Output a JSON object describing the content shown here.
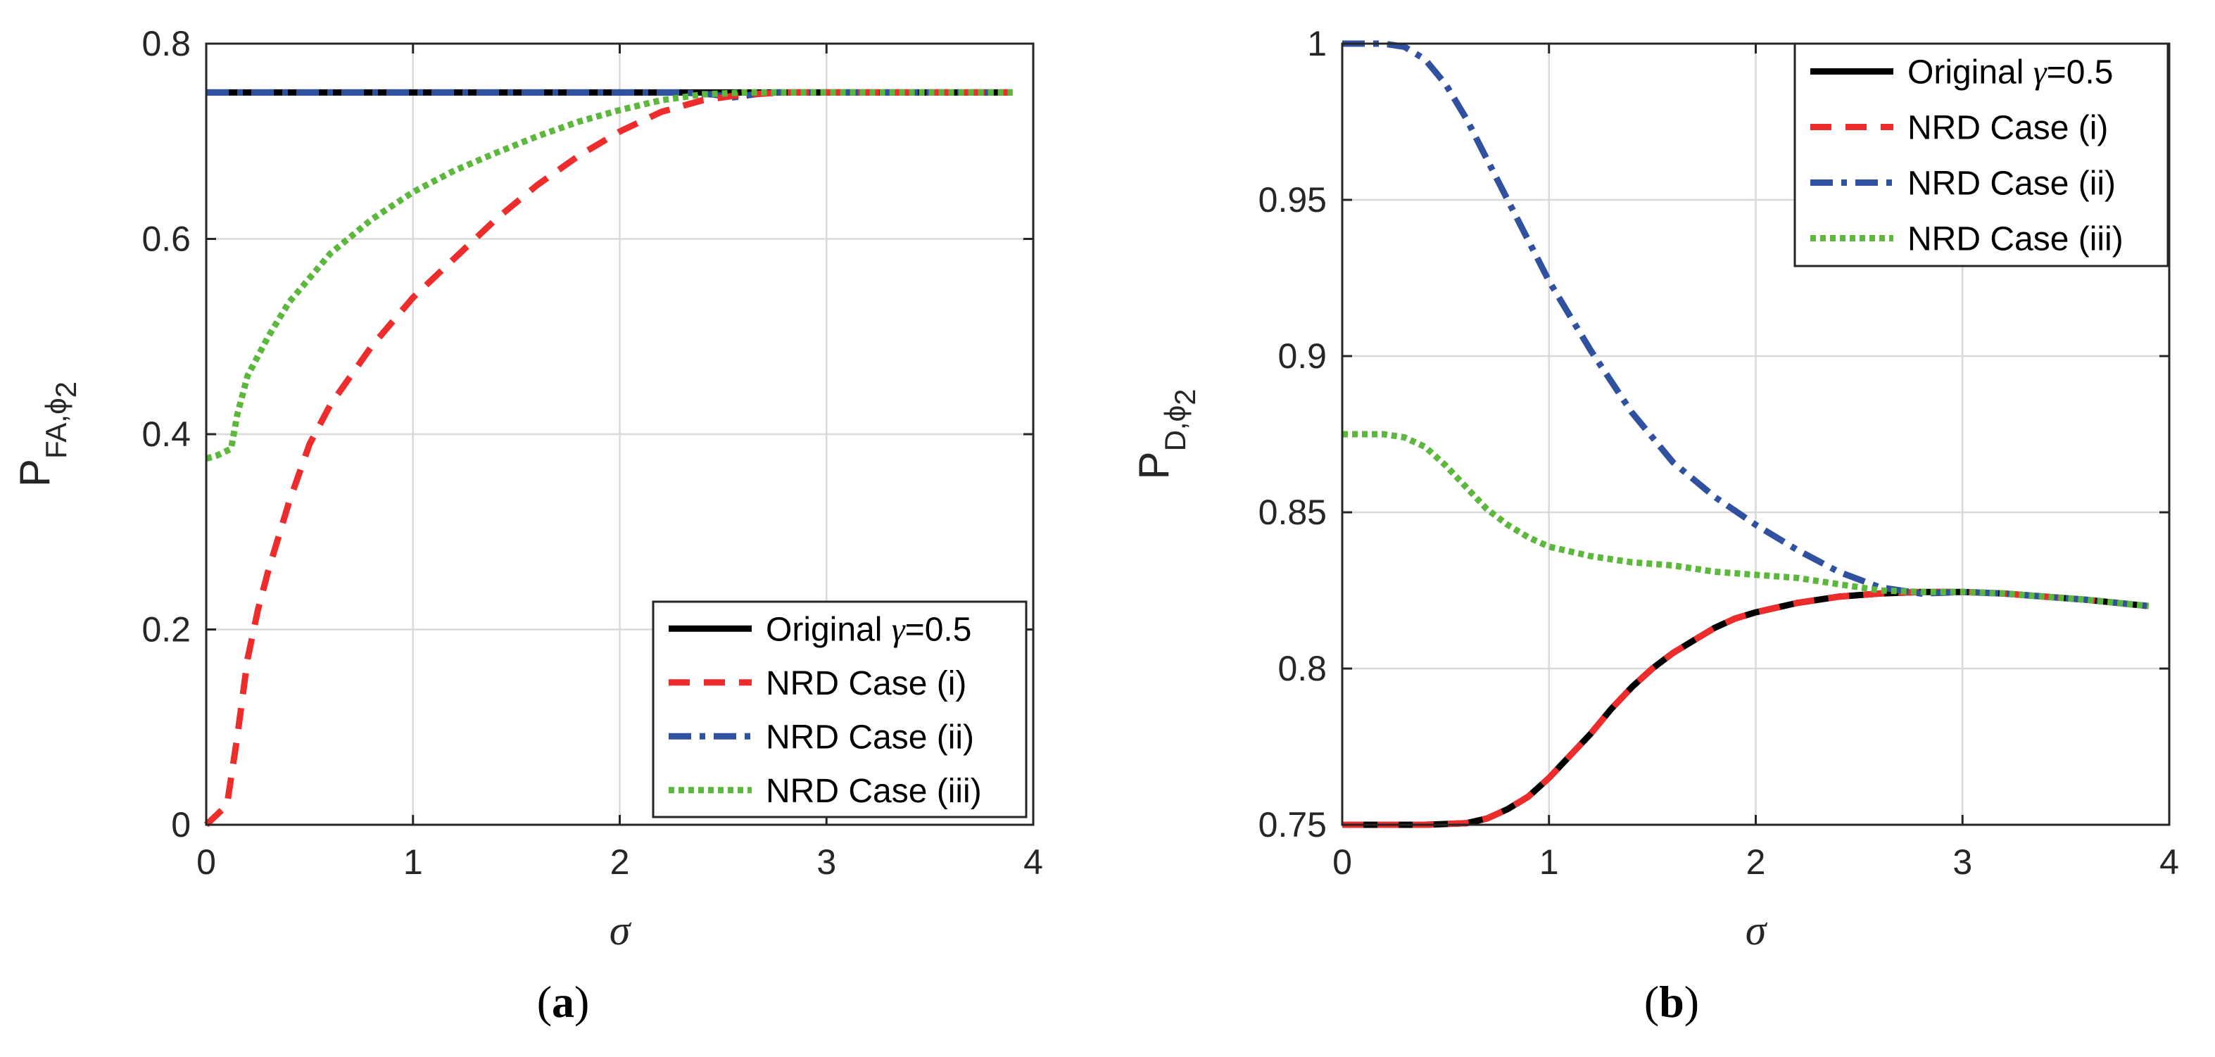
{
  "chart_data": [
    {
      "type": "line",
      "panel_label": "a",
      "xlabel": "σ",
      "ylabel": "P",
      "ylabel_subscript": "FA,ϕ",
      "ylabel_subsubscript": "2",
      "xlim": [
        0,
        4
      ],
      "ylim": [
        0,
        0.8
      ],
      "xticks": [
        0,
        1,
        2,
        3,
        4
      ],
      "yticks": [
        0,
        0.2,
        0.4,
        0.6,
        0.8
      ],
      "xtick_labels": [
        "0",
        "1",
        "2",
        "3",
        "4"
      ],
      "ytick_labels": [
        "0",
        "0.2",
        "0.4",
        "0.6",
        "0.8"
      ],
      "grid": true,
      "legend_position": "bottom-right",
      "series": [
        {
          "name": "Original γ=0.5",
          "color": "#000000",
          "style": "solid",
          "x": [
            0,
            3.9
          ],
          "y": [
            0.75,
            0.75
          ]
        },
        {
          "name": "NRD Case (i)",
          "color": "#ee2c2c",
          "style": "dashed",
          "x": [
            0,
            0.1,
            0.15,
            0.2,
            0.25,
            0.3,
            0.4,
            0.5,
            0.6,
            0.8,
            1.0,
            1.2,
            1.4,
            1.6,
            1.8,
            2.0,
            2.2,
            2.4,
            2.6,
            2.8,
            3.0,
            3.5,
            3.9
          ],
          "y": [
            0.0,
            0.02,
            0.09,
            0.17,
            0.22,
            0.26,
            0.33,
            0.39,
            0.43,
            0.49,
            0.54,
            0.58,
            0.62,
            0.655,
            0.685,
            0.71,
            0.73,
            0.742,
            0.748,
            0.75,
            0.75,
            0.75,
            0.75
          ]
        },
        {
          "name": "NRD Case (ii)",
          "color": "#3050a0",
          "style": "dashdot",
          "x": [
            0,
            2.3,
            2.45,
            2.55,
            2.65,
            2.75,
            3.0,
            3.9
          ],
          "y": [
            0.75,
            0.75,
            0.748,
            0.745,
            0.748,
            0.75,
            0.75,
            0.75
          ]
        },
        {
          "name": "NRD Case (iii)",
          "color": "#5cb83c",
          "style": "dotted",
          "x": [
            0,
            0.05,
            0.12,
            0.15,
            0.2,
            0.3,
            0.4,
            0.5,
            0.6,
            0.8,
            1.0,
            1.2,
            1.4,
            1.6,
            1.8,
            2.0,
            2.2,
            2.4,
            2.6,
            2.8,
            3.0,
            3.5,
            3.9
          ],
          "y": [
            0.375,
            0.378,
            0.385,
            0.42,
            0.46,
            0.5,
            0.535,
            0.56,
            0.585,
            0.62,
            0.648,
            0.67,
            0.688,
            0.705,
            0.72,
            0.732,
            0.742,
            0.748,
            0.75,
            0.75,
            0.75,
            0.75,
            0.75
          ]
        }
      ]
    },
    {
      "type": "line",
      "panel_label": "b",
      "xlabel": "σ",
      "ylabel": "P",
      "ylabel_subscript": "D,ϕ",
      "ylabel_subsubscript": "2",
      "xlim": [
        0,
        4
      ],
      "ylim": [
        0.75,
        1.0
      ],
      "xticks": [
        0,
        1,
        2,
        3,
        4
      ],
      "yticks": [
        0.75,
        0.8,
        0.85,
        0.9,
        0.95,
        1.0
      ],
      "xtick_labels": [
        "0",
        "1",
        "2",
        "3",
        "4"
      ],
      "ytick_labels": [
        "0.75",
        "0.8",
        "0.85",
        "0.9",
        "0.95",
        "1"
      ],
      "grid": true,
      "legend_position": "top-right",
      "series": [
        {
          "name": "Original γ=0.5",
          "color": "#000000",
          "style": "solid",
          "x": [
            0,
            0.2,
            0.4,
            0.6,
            0.7,
            0.8,
            0.9,
            1.0,
            1.1,
            1.2,
            1.3,
            1.4,
            1.5,
            1.6,
            1.7,
            1.8,
            1.9,
            2.0,
            2.2,
            2.4,
            2.6,
            2.8,
            3.0,
            3.2,
            3.4,
            3.6,
            3.9
          ],
          "y": [
            0.75,
            0.75,
            0.75,
            0.7505,
            0.752,
            0.755,
            0.759,
            0.765,
            0.772,
            0.779,
            0.787,
            0.794,
            0.8,
            0.805,
            0.809,
            0.813,
            0.816,
            0.818,
            0.821,
            0.823,
            0.824,
            0.8245,
            0.8245,
            0.824,
            0.823,
            0.822,
            0.82
          ]
        },
        {
          "name": "NRD Case (i)",
          "color": "#ee2c2c",
          "style": "dashed",
          "x": [
            0,
            0.2,
            0.4,
            0.6,
            0.7,
            0.8,
            0.9,
            1.0,
            1.1,
            1.2,
            1.3,
            1.4,
            1.5,
            1.6,
            1.7,
            1.8,
            1.9,
            2.0,
            2.2,
            2.4,
            2.6,
            2.8,
            3.0,
            3.2,
            3.4,
            3.6,
            3.9
          ],
          "y": [
            0.75,
            0.75,
            0.75,
            0.7505,
            0.752,
            0.755,
            0.759,
            0.765,
            0.772,
            0.779,
            0.787,
            0.794,
            0.8,
            0.805,
            0.809,
            0.813,
            0.816,
            0.818,
            0.821,
            0.823,
            0.824,
            0.8245,
            0.8245,
            0.824,
            0.823,
            0.822,
            0.82
          ]
        },
        {
          "name": "NRD Case (ii)",
          "color": "#3050a0",
          "style": "dashdot",
          "x": [
            0,
            0.2,
            0.3,
            0.4,
            0.5,
            0.6,
            0.7,
            0.8,
            0.9,
            1.0,
            1.2,
            1.4,
            1.6,
            1.8,
            2.0,
            2.2,
            2.4,
            2.6,
            2.8,
            3.0,
            3.2,
            3.4,
            3.6,
            3.9
          ],
          "y": [
            1.0,
            1.0,
            0.999,
            0.995,
            0.987,
            0.976,
            0.963,
            0.95,
            0.937,
            0.924,
            0.902,
            0.882,
            0.866,
            0.855,
            0.846,
            0.838,
            0.831,
            0.826,
            0.824,
            0.8245,
            0.824,
            0.823,
            0.822,
            0.82
          ]
        },
        {
          "name": "NRD Case (iii)",
          "color": "#5cb83c",
          "style": "dotted",
          "x": [
            0,
            0.2,
            0.3,
            0.4,
            0.5,
            0.6,
            0.7,
            0.8,
            0.9,
            1.0,
            1.2,
            1.4,
            1.6,
            1.8,
            2.0,
            2.2,
            2.4,
            2.6,
            2.8,
            3.0,
            3.2,
            3.4,
            3.6,
            3.9
          ],
          "y": [
            0.875,
            0.875,
            0.874,
            0.871,
            0.865,
            0.858,
            0.851,
            0.846,
            0.842,
            0.839,
            0.836,
            0.834,
            0.833,
            0.831,
            0.83,
            0.829,
            0.827,
            0.825,
            0.8245,
            0.8245,
            0.824,
            0.823,
            0.822,
            0.82
          ]
        }
      ]
    }
  ]
}
